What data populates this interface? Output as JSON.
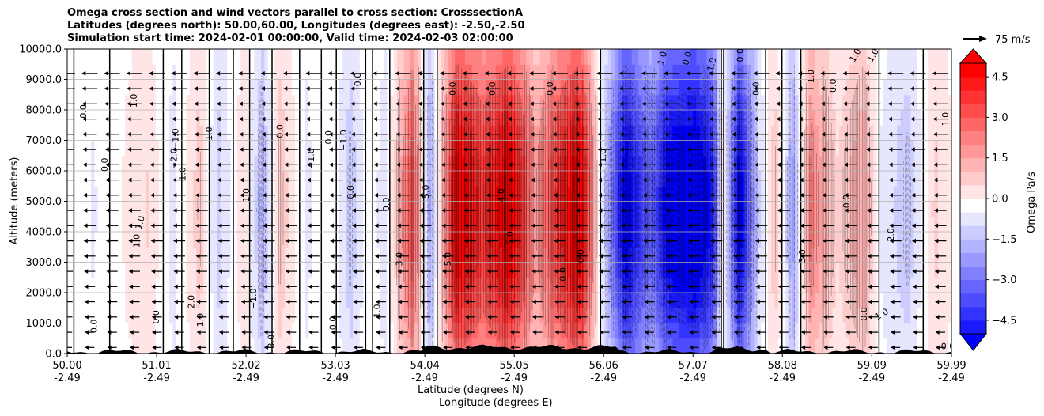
{
  "figure": {
    "title_lines": [
      "Omega cross section and wind vectors parallel to cross section: CrosssectionA",
      "Latitudes (degrees north): 50.00,60.00, Longitudes (degrees east): -2.50,-2.50",
      "Simulation start time: 2024-02-01 00:00:00, Valid time: 2024-02-03 02:00:00"
    ],
    "reference_vector_label": "75 m/s"
  },
  "chart_data": {
    "type": "heatmap",
    "subtype": "filled-contour cross section with contour lines and wind vectors",
    "xlabel": "Latitude (degrees N)",
    "xlabel2": "Longitude (degrees E)",
    "ylabel": "Altitude (meters)",
    "ylim": [
      0,
      10000
    ],
    "xlim": [
      50.0,
      59.99
    ],
    "x_ticks": [
      {
        "lat": "50.00",
        "lon": "-2.49"
      },
      {
        "lat": "51.01",
        "lon": "-2.49"
      },
      {
        "lat": "52.02",
        "lon": "-2.49"
      },
      {
        "lat": "53.03",
        "lon": "-2.49"
      },
      {
        "lat": "54.04",
        "lon": "-2.49"
      },
      {
        "lat": "55.05",
        "lon": "-2.49"
      },
      {
        "lat": "56.06",
        "lon": "-2.49"
      },
      {
        "lat": "57.07",
        "lon": "-2.49"
      },
      {
        "lat": "58.08",
        "lon": "-2.49"
      },
      {
        "lat": "59.09",
        "lon": "-2.49"
      },
      {
        "lat": "59.99",
        "lon": "-2.49"
      }
    ],
    "y_ticks": [
      "0.0",
      "1000.0",
      "2000.0",
      "3000.0",
      "4000.0",
      "5000.0",
      "6000.0",
      "7000.0",
      "8000.0",
      "9000.0",
      "10000.0"
    ],
    "grid": "horizontal",
    "colorbar": {
      "label": "Omega Pa/s",
      "ticks": [
        "4.5",
        "3.0",
        "1.5",
        "0.0",
        "−1.5",
        "−3.0",
        "−4.5"
      ],
      "range": [
        -5.0,
        5.0
      ],
      "extend": "both",
      "colormap": "bwr"
    },
    "omega_profile_pa_s": [
      {
        "lat": 50.0,
        "omega": 0.1
      },
      {
        "lat": 50.3,
        "omega": -0.3
      },
      {
        "lat": 50.6,
        "omega": 0.2
      },
      {
        "lat": 50.9,
        "omega": 0.8
      },
      {
        "lat": 51.2,
        "omega": -0.5
      },
      {
        "lat": 51.5,
        "omega": 1.1
      },
      {
        "lat": 51.7,
        "omega": -1.0
      },
      {
        "lat": 52.0,
        "omega": 0.7
      },
      {
        "lat": 52.2,
        "omega": -1.6
      },
      {
        "lat": 52.4,
        "omega": 1.2
      },
      {
        "lat": 52.7,
        "omega": -0.4
      },
      {
        "lat": 53.0,
        "omega": 0.3
      },
      {
        "lat": 53.2,
        "omega": -1.2
      },
      {
        "lat": 53.4,
        "omega": 0.2
      },
      {
        "lat": 53.6,
        "omega": -0.6
      },
      {
        "lat": 53.9,
        "omega": 3.5
      },
      {
        "lat": 54.1,
        "omega": -2.0
      },
      {
        "lat": 54.4,
        "omega": 5.5
      },
      {
        "lat": 54.7,
        "omega": 4.0
      },
      {
        "lat": 55.0,
        "omega": 5.5
      },
      {
        "lat": 55.3,
        "omega": 2.0
      },
      {
        "lat": 55.6,
        "omega": 4.5
      },
      {
        "lat": 55.8,
        "omega": 5.5
      },
      {
        "lat": 56.0,
        "omega": 0.5
      },
      {
        "lat": 56.1,
        "omega": -1.5
      },
      {
        "lat": 56.3,
        "omega": -5.5
      },
      {
        "lat": 56.6,
        "omega": -3.0
      },
      {
        "lat": 56.8,
        "omega": -5.5
      },
      {
        "lat": 57.1,
        "omega": -6.0
      },
      {
        "lat": 57.3,
        "omega": -4.5
      },
      {
        "lat": 57.4,
        "omega": 0.5
      },
      {
        "lat": 57.6,
        "omega": -5.5
      },
      {
        "lat": 57.8,
        "omega": -1.0
      },
      {
        "lat": 58.0,
        "omega": 1.2
      },
      {
        "lat": 58.2,
        "omega": -2.0
      },
      {
        "lat": 58.4,
        "omega": 2.5
      },
      {
        "lat": 58.7,
        "omega": 0.8
      },
      {
        "lat": 59.0,
        "omega": 1.8
      },
      {
        "lat": 59.2,
        "omega": -0.3
      },
      {
        "lat": 59.5,
        "omega": -1.2
      },
      {
        "lat": 59.8,
        "omega": 0.9
      },
      {
        "lat": 59.99,
        "omega": 0.3
      }
    ],
    "contour_labels": [
      {
        "text": "0.0",
        "lat": 50.18,
        "alt": 7950,
        "rot": -90
      },
      {
        "text": "0.0",
        "lat": 50.42,
        "alt": 6200,
        "rot": -90
      },
      {
        "text": "1.0",
        "lat": 50.75,
        "alt": 8300,
        "rot": -90
      },
      {
        "text": "1.0",
        "lat": 50.82,
        "alt": 4300,
        "rot": -75
      },
      {
        "text": "1.0",
        "lat": 50.78,
        "alt": 3700,
        "rot": -90
      },
      {
        "text": "0.0",
        "lat": 50.3,
        "alt": 900,
        "rot": -90
      },
      {
        "text": "0.0",
        "lat": 51.0,
        "alt": 1200,
        "rot": -90
      },
      {
        "text": "−1.0",
        "lat": 51.22,
        "alt": 7050,
        "rot": -90
      },
      {
        "text": "−2.0",
        "lat": 51.2,
        "alt": 6400,
        "rot": -90
      },
      {
        "text": "1.0",
        "lat": 51.3,
        "alt": 5900,
        "rot": -90
      },
      {
        "text": "−1.0",
        "lat": 51.6,
        "alt": 7100,
        "rot": -90
      },
      {
        "text": "2.0",
        "lat": 51.4,
        "alt": 1700,
        "rot": -90
      },
      {
        "text": "1.0",
        "lat": 51.5,
        "alt": 1100,
        "rot": -90
      },
      {
        "text": "0.0",
        "lat": 52.4,
        "alt": 7300,
        "rot": -90
      },
      {
        "text": "1.0",
        "lat": 52.02,
        "alt": 5200,
        "rot": -90
      },
      {
        "text": "−1.0",
        "lat": 52.1,
        "alt": 1800,
        "rot": -90
      },
      {
        "text": "3.0",
        "lat": 52.3,
        "alt": 400,
        "rot": -90
      },
      {
        "text": "−1.0",
        "lat": 52.75,
        "alt": 6400,
        "rot": -90
      },
      {
        "text": "0.0",
        "lat": 52.95,
        "alt": 7100,
        "rot": -90
      },
      {
        "text": "0.0",
        "lat": 53.2,
        "alt": 5300,
        "rot": -90
      },
      {
        "text": "0.0",
        "lat": 53.0,
        "alt": 1000,
        "rot": -90
      },
      {
        "text": "1.0",
        "lat": 53.5,
        "alt": 1400,
        "rot": -90
      },
      {
        "text": "−1.0",
        "lat": 53.12,
        "alt": 7000,
        "rot": -90
      },
      {
        "text": "0.0",
        "lat": 53.6,
        "alt": 4900,
        "rot": -90
      },
      {
        "text": "0.0",
        "lat": 53.28,
        "alt": 9000,
        "rot": -90
      },
      {
        "text": "3.0",
        "lat": 53.75,
        "alt": 3100,
        "rot": -90
      },
      {
        "text": "0.0",
        "lat": 54.35,
        "alt": 8700,
        "rot": -90
      },
      {
        "text": "−5.0",
        "lat": 54.05,
        "alt": 5200,
        "rot": -90
      },
      {
        "text": "5.0",
        "lat": 54.3,
        "alt": 3100,
        "rot": -90
      },
      {
        "text": "0.0",
        "lat": 54.8,
        "alt": 8700,
        "rot": -90
      },
      {
        "text": "4.0",
        "lat": 54.9,
        "alt": 5200,
        "rot": -90
      },
      {
        "text": "5.0",
        "lat": 55.0,
        "alt": 3800,
        "rot": -90
      },
      {
        "text": "0.0",
        "lat": 55.45,
        "alt": 8700,
        "rot": -90
      },
      {
        "text": "0.0",
        "lat": 55.6,
        "alt": 2600,
        "rot": -90
      },
      {
        "text": "0.0",
        "lat": 55.8,
        "alt": 3200,
        "rot": -90
      },
      {
        "text": "1.0",
        "lat": 56.05,
        "alt": 6500,
        "rot": -90
      },
      {
        "text": "1.0",
        "lat": 56.72,
        "alt": 9700,
        "rot": -75
      },
      {
        "text": "0.0",
        "lat": 57.0,
        "alt": 9700,
        "rot": -75
      },
      {
        "text": "1.0",
        "lat": 57.28,
        "alt": 9500,
        "rot": -75
      },
      {
        "text": "0.0",
        "lat": 57.6,
        "alt": 9800,
        "rot": -90
      },
      {
        "text": "0.0",
        "lat": 57.78,
        "alt": 8700,
        "rot": -90
      },
      {
        "text": "1.0",
        "lat": 58.4,
        "alt": 9100,
        "rot": -90
      },
      {
        "text": "0.0",
        "lat": 58.65,
        "alt": 8800,
        "rot": -90
      },
      {
        "text": "1.0",
        "lat": 58.9,
        "alt": 9800,
        "rot": -60
      },
      {
        "text": "1.0",
        "lat": 59.1,
        "alt": 9800,
        "rot": -60
      },
      {
        "text": "3.0",
        "lat": 58.3,
        "alt": 3200,
        "rot": -90
      },
      {
        "text": "0.0",
        "lat": 58.8,
        "alt": 5000,
        "rot": -90
      },
      {
        "text": "2.0",
        "lat": 59.3,
        "alt": 3900,
        "rot": -90
      },
      {
        "text": "1.0",
        "lat": 59.2,
        "alt": 1300,
        "rot": -30
      },
      {
        "text": "0.0",
        "lat": 59.0,
        "alt": 1300,
        "rot": -90
      },
      {
        "text": "1.0",
        "lat": 59.92,
        "alt": 7700,
        "rot": -90
      },
      {
        "text": "0.0",
        "lat": 59.95,
        "alt": 250,
        "rot": 0
      }
    ]
  }
}
